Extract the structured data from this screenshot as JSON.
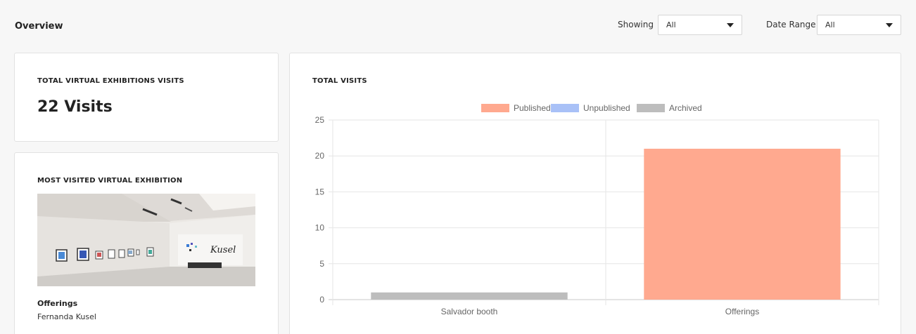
{
  "header": {
    "title": "Overview",
    "showing_label": "Showing",
    "showing_value": "All",
    "date_range_label": "Date Range",
    "date_range_value": "All"
  },
  "total_visits_card": {
    "label": "TOTAL VIRTUAL EXHIBITIONS VISITS",
    "value": "22 Visits"
  },
  "most_visited_card": {
    "label": "MOST VISITED VIRTUAL EXHIBITION",
    "exhibition_name": "Offerings",
    "artist": "Fernanda Kusel",
    "image_signature": "Kusel"
  },
  "chart_card": {
    "label": "TOTAL VISITS"
  },
  "chart_data": {
    "type": "bar",
    "categories": [
      "Salvador booth",
      "Offerings"
    ],
    "series": [
      {
        "name": "Published",
        "values": [
          0,
          21
        ],
        "color": "#ffa98f"
      },
      {
        "name": "Unpublished",
        "values": [
          0,
          0
        ],
        "color": "#a9c1f7"
      },
      {
        "name": "Archived",
        "values": [
          1,
          0
        ],
        "color": "#bdbdbd"
      }
    ],
    "ylim": [
      0,
      25
    ],
    "yticks": [
      "0",
      "5",
      "10",
      "15",
      "20",
      "25"
    ],
    "legend_position": "top",
    "grid": true
  }
}
